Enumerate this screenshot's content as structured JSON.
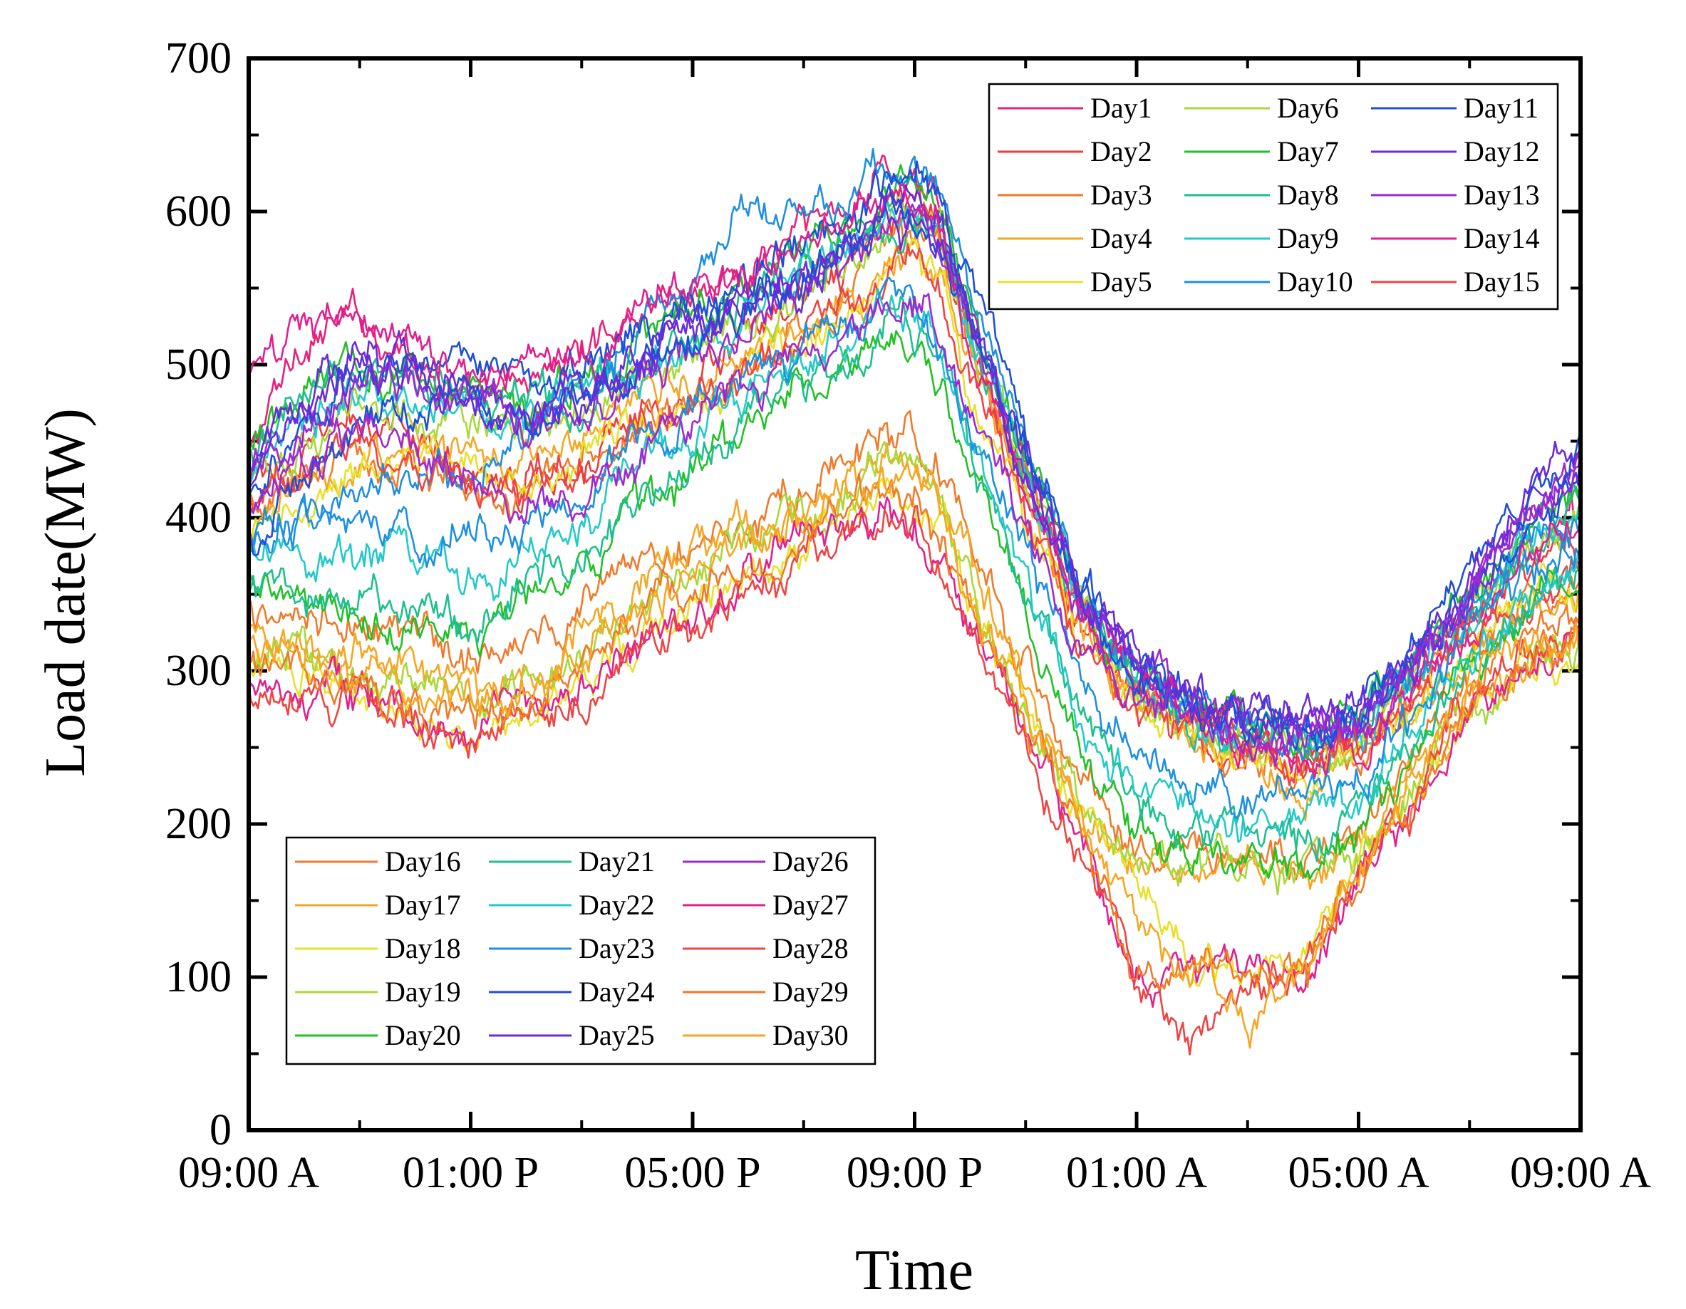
{
  "chart_data": {
    "type": "line",
    "title": "",
    "xlabel": "Time",
    "ylabel": "Load date(MW)",
    "ylim": [
      0,
      700
    ],
    "yticks": [
      0,
      100,
      200,
      300,
      400,
      500,
      600,
      700
    ],
    "xlim_hours": [
      0,
      24
    ],
    "xticks": [
      {
        "hour": 0,
        "label": "09:00 A"
      },
      {
        "hour": 4,
        "label": "01:00 P"
      },
      {
        "hour": 8,
        "label": "05:00 P"
      },
      {
        "hour": 12,
        "label": "09:00 P"
      },
      {
        "hour": 16,
        "label": "01:00 A"
      },
      {
        "hour": 20,
        "label": "05:00 A"
      },
      {
        "hour": 24,
        "label": "09:00 A"
      }
    ],
    "x_hours": [
      0,
      1,
      2,
      3,
      4,
      5,
      6,
      7,
      8,
      9,
      10,
      11,
      11.5,
      12,
      12.5,
      13,
      14,
      15,
      16,
      17,
      18,
      19,
      20,
      21,
      22,
      23,
      24
    ],
    "legend": [
      {
        "position": "top-right",
        "rows": 5,
        "items": [
          "Day1",
          "Day2",
          "Day3",
          "Day4",
          "Day5",
          "Day6",
          "Day7",
          "Day8",
          "Day9",
          "Day10",
          "Day11",
          "Day12",
          "Day13",
          "Day14",
          "Day15"
        ]
      },
      {
        "position": "bottom-left",
        "rows": 5,
        "items": [
          "Day16",
          "Day17",
          "Day18",
          "Day19",
          "Day20",
          "Day21",
          "Day22",
          "Day23",
          "Day24",
          "Day25",
          "Day26",
          "Day27",
          "Day28",
          "Day29",
          "Day30"
        ]
      }
    ],
    "series": [
      {
        "name": "Day1",
        "color": "#e8217a",
        "values": [
          440,
          520,
          530,
          510,
          470,
          490,
          510,
          540,
          550,
          560,
          590,
          610,
          630,
          620,
          600,
          530,
          440,
          340,
          290,
          270,
          250,
          240,
          250,
          280,
          330,
          380,
          400
        ]
      },
      {
        "name": "Day2",
        "color": "#ef3b3b",
        "values": [
          420,
          440,
          460,
          450,
          430,
          430,
          440,
          470,
          490,
          520,
          540,
          560,
          590,
          600,
          580,
          520,
          430,
          330,
          290,
          260,
          250,
          240,
          250,
          290,
          330,
          370,
          380
        ]
      },
      {
        "name": "Day3",
        "color": "#f07a2a",
        "values": [
          400,
          430,
          440,
          440,
          420,
          420,
          430,
          460,
          480,
          500,
          530,
          560,
          580,
          590,
          570,
          510,
          420,
          330,
          280,
          260,
          240,
          240,
          250,
          280,
          320,
          350,
          360
        ]
      },
      {
        "name": "Day4",
        "color": "#f5a623",
        "values": [
          390,
          420,
          440,
          450,
          440,
          440,
          450,
          470,
          490,
          510,
          530,
          550,
          570,
          580,
          560,
          500,
          410,
          320,
          280,
          250,
          240,
          230,
          250,
          280,
          310,
          340,
          350
        ]
      },
      {
        "name": "Day5",
        "color": "#e8e02b",
        "values": [
          380,
          410,
          430,
          440,
          430,
          430,
          440,
          460,
          480,
          500,
          520,
          540,
          560,
          570,
          550,
          490,
          400,
          320,
          280,
          250,
          240,
          230,
          250,
          280,
          320,
          350,
          360
        ]
      },
      {
        "name": "Day6",
        "color": "#a8d83a",
        "values": [
          420,
          450,
          470,
          470,
          460,
          460,
          470,
          490,
          510,
          530,
          550,
          570,
          590,
          600,
          580,
          520,
          430,
          340,
          290,
          270,
          260,
          250,
          260,
          300,
          340,
          380,
          400
        ]
      },
      {
        "name": "Day7",
        "color": "#22c027",
        "values": [
          450,
          480,
          500,
          500,
          490,
          480,
          490,
          510,
          530,
          550,
          570,
          590,
          610,
          610,
          590,
          530,
          440,
          340,
          300,
          280,
          270,
          260,
          270,
          310,
          350,
          390,
          420
        ]
      },
      {
        "name": "Day8",
        "color": "#1ebf8f",
        "values": [
          440,
          470,
          490,
          490,
          480,
          470,
          480,
          500,
          520,
          540,
          560,
          580,
          600,
          600,
          580,
          520,
          430,
          340,
          290,
          270,
          260,
          250,
          260,
          300,
          340,
          380,
          410
        ]
      },
      {
        "name": "Day9",
        "color": "#23c9c9",
        "values": [
          430,
          460,
          480,
          480,
          470,
          470,
          480,
          500,
          520,
          540,
          560,
          580,
          600,
          600,
          580,
          520,
          430,
          340,
          290,
          270,
          260,
          250,
          260,
          300,
          340,
          380,
          400
        ]
      },
      {
        "name": "Day10",
        "color": "#1e8fe0",
        "values": [
          380,
          400,
          420,
          430,
          430,
          450,
          480,
          520,
          560,
          590,
          600,
          610,
          630,
          630,
          610,
          550,
          450,
          350,
          300,
          280,
          260,
          250,
          260,
          300,
          340,
          380,
          400
        ]
      },
      {
        "name": "Day11",
        "color": "#1f4fd6",
        "values": [
          420,
          470,
          500,
          500,
          500,
          490,
          500,
          520,
          540,
          560,
          580,
          600,
          620,
          630,
          610,
          560,
          460,
          360,
          310,
          290,
          280,
          270,
          270,
          310,
          350,
          390,
          430
        ]
      },
      {
        "name": "Day12",
        "color": "#6a2bd9",
        "values": [
          430,
          480,
          510,
          500,
          480,
          470,
          480,
          500,
          520,
          540,
          560,
          580,
          600,
          610,
          590,
          530,
          440,
          350,
          300,
          280,
          270,
          260,
          270,
          310,
          350,
          400,
          440
        ]
      },
      {
        "name": "Day13",
        "color": "#9b2bd0",
        "values": [
          420,
          460,
          490,
          490,
          470,
          460,
          470,
          490,
          510,
          530,
          550,
          570,
          590,
          600,
          580,
          520,
          430,
          340,
          300,
          280,
          270,
          260,
          270,
          310,
          350,
          400,
          440
        ]
      },
      {
        "name": "Day14",
        "color": "#e0208f",
        "values": [
          500,
          520,
          535,
          520,
          500,
          490,
          500,
          530,
          550,
          560,
          580,
          600,
          610,
          600,
          580,
          520,
          430,
          340,
          290,
          270,
          250,
          240,
          250,
          290,
          330,
          370,
          390
        ]
      },
      {
        "name": "Day15",
        "color": "#ef4444",
        "values": [
          410,
          430,
          450,
          440,
          420,
          420,
          430,
          460,
          480,
          500,
          520,
          540,
          560,
          570,
          550,
          490,
          400,
          320,
          280,
          260,
          250,
          240,
          250,
          280,
          320,
          350,
          370
        ]
      },
      {
        "name": "Day16",
        "color": "#f07a2a",
        "values": [
          340,
          340,
          330,
          320,
          310,
          320,
          340,
          370,
          390,
          400,
          420,
          440,
          460,
          450,
          430,
          380,
          300,
          220,
          190,
          180,
          180,
          180,
          190,
          240,
          290,
          320,
          330
        ]
      },
      {
        "name": "Day17",
        "color": "#f5a623",
        "values": [
          320,
          320,
          310,
          300,
          290,
          300,
          320,
          350,
          370,
          390,
          410,
          430,
          450,
          440,
          420,
          370,
          290,
          210,
          180,
          170,
          170,
          170,
          180,
          230,
          280,
          310,
          320
        ]
      },
      {
        "name": "Day18",
        "color": "#e8e02b",
        "values": [
          300,
          300,
          290,
          280,
          260,
          270,
          290,
          320,
          340,
          360,
          380,
          400,
          420,
          410,
          390,
          340,
          270,
          200,
          170,
          110,
          110,
          110,
          170,
          220,
          270,
          300,
          310
        ]
      },
      {
        "name": "Day19",
        "color": "#a8d83a",
        "values": [
          310,
          310,
          300,
          290,
          280,
          290,
          310,
          340,
          360,
          380,
          400,
          420,
          440,
          430,
          410,
          360,
          280,
          210,
          180,
          170,
          170,
          170,
          180,
          230,
          280,
          310,
          320
        ]
      },
      {
        "name": "Day20",
        "color": "#22c027",
        "values": [
          360,
          350,
          340,
          330,
          320,
          340,
          360,
          400,
          430,
          460,
          480,
          500,
          520,
          510,
          490,
          430,
          340,
          250,
          200,
          180,
          180,
          170,
          190,
          240,
          300,
          340,
          360
        ]
      },
      {
        "name": "Day21",
        "color": "#1ebf8f",
        "values": [
          360,
          350,
          350,
          340,
          330,
          350,
          370,
          410,
          440,
          470,
          490,
          510,
          530,
          520,
          500,
          440,
          350,
          260,
          210,
          200,
          190,
          190,
          200,
          250,
          310,
          350,
          370
        ]
      },
      {
        "name": "Day22",
        "color": "#23c9c9",
        "values": [
          380,
          380,
          370,
          370,
          360,
          380,
          400,
          430,
          460,
          490,
          510,
          520,
          540,
          530,
          510,
          450,
          360,
          270,
          230,
          210,
          200,
          200,
          210,
          260,
          310,
          350,
          370
        ]
      },
      {
        "name": "Day23",
        "color": "#1e8fe0",
        "values": [
          400,
          400,
          400,
          390,
          390,
          400,
          420,
          450,
          470,
          490,
          510,
          520,
          540,
          530,
          510,
          460,
          380,
          290,
          250,
          230,
          220,
          220,
          230,
          270,
          320,
          360,
          380
        ]
      },
      {
        "name": "Day24",
        "color": "#1f4fd6",
        "values": [
          390,
          430,
          460,
          470,
          480,
          470,
          480,
          500,
          520,
          540,
          560,
          580,
          600,
          600,
          580,
          530,
          440,
          350,
          300,
          280,
          270,
          260,
          270,
          310,
          360,
          410,
          450
        ]
      },
      {
        "name": "Day25",
        "color": "#6a2bd9",
        "values": [
          420,
          470,
          500,
          490,
          480,
          470,
          480,
          500,
          520,
          540,
          560,
          580,
          600,
          600,
          580,
          520,
          430,
          340,
          300,
          280,
          270,
          260,
          270,
          310,
          360,
          410,
          450
        ]
      },
      {
        "name": "Day26",
        "color": "#9b2bd0",
        "values": [
          400,
          440,
          460,
          450,
          420,
          400,
          410,
          440,
          460,
          480,
          500,
          520,
          540,
          540,
          520,
          470,
          390,
          310,
          280,
          270,
          260,
          250,
          260,
          300,
          350,
          400,
          440
        ]
      },
      {
        "name": "Day27",
        "color": "#e0208f",
        "values": [
          290,
          290,
          280,
          270,
          260,
          270,
          290,
          320,
          340,
          360,
          380,
          400,
          410,
          400,
          380,
          330,
          260,
          190,
          100,
          100,
          100,
          100,
          150,
          210,
          270,
          300,
          310
        ]
      },
      {
        "name": "Day28",
        "color": "#ef4444",
        "values": [
          290,
          290,
          280,
          270,
          250,
          260,
          280,
          310,
          330,
          350,
          370,
          390,
          400,
          390,
          370,
          320,
          250,
          180,
          100,
          70,
          100,
          100,
          160,
          220,
          280,
          310,
          320
        ]
      },
      {
        "name": "Day29",
        "color": "#f07a2a",
        "values": [
          310,
          300,
          290,
          280,
          270,
          280,
          300,
          330,
          350,
          370,
          390,
          410,
          420,
          410,
          390,
          340,
          270,
          190,
          110,
          100,
          100,
          100,
          160,
          220,
          280,
          310,
          320
        ]
      },
      {
        "name": "Day30",
        "color": "#f5a623",
        "values": [
          320,
          310,
          300,
          290,
          280,
          290,
          310,
          340,
          360,
          380,
          400,
          420,
          430,
          420,
          400,
          350,
          280,
          200,
          150,
          110,
          70,
          110,
          170,
          230,
          280,
          310,
          320
        ]
      }
    ]
  }
}
